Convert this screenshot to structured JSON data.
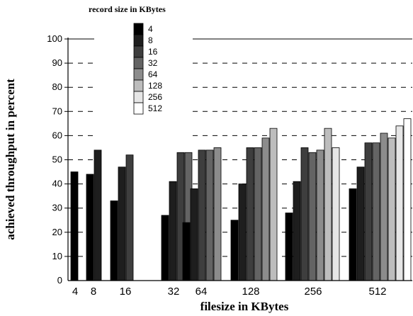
{
  "chart_data": {
    "type": "bar",
    "title": "",
    "xlabel": "filesize in KBytes",
    "ylabel": "achieved throughput in percent",
    "ylim": [
      0,
      100
    ],
    "yticks": [
      "0",
      "10",
      "20",
      "30",
      "40",
      "50",
      "60",
      "70",
      "80",
      "90",
      "100"
    ],
    "grid": "horizontal dashed",
    "legend_title": "record size in KBytes",
    "legend_position": "top-left",
    "categories": [
      "4",
      "8",
      "16",
      "32",
      "64",
      "128",
      "256",
      "512"
    ],
    "series": [
      {
        "name": "4",
        "color": "#000000",
        "values": [
          45,
          44,
          33,
          27,
          24,
          25,
          28,
          38
        ]
      },
      {
        "name": "8",
        "color": "#1e1e1e",
        "values": [
          null,
          54,
          47,
          41,
          38,
          40,
          41,
          47
        ]
      },
      {
        "name": "16",
        "color": "#3e3e3e",
        "values": [
          null,
          null,
          52,
          53,
          54,
          55,
          55,
          57
        ]
      },
      {
        "name": "32",
        "color": "#646464",
        "values": [
          null,
          null,
          null,
          53,
          54,
          55,
          53,
          57
        ]
      },
      {
        "name": "64",
        "color": "#8c8c8c",
        "values": [
          null,
          null,
          null,
          null,
          55,
          59,
          54,
          61
        ]
      },
      {
        "name": "128",
        "color": "#bdbdbd",
        "values": [
          null,
          null,
          null,
          null,
          null,
          63,
          63,
          59
        ]
      },
      {
        "name": "256",
        "color": "#e6e6e6",
        "values": [
          null,
          null,
          null,
          null,
          null,
          null,
          55,
          64
        ]
      },
      {
        "name": "512",
        "color": "#ffffff",
        "values": [
          null,
          null,
          null,
          null,
          null,
          null,
          null,
          67
        ]
      }
    ]
  }
}
